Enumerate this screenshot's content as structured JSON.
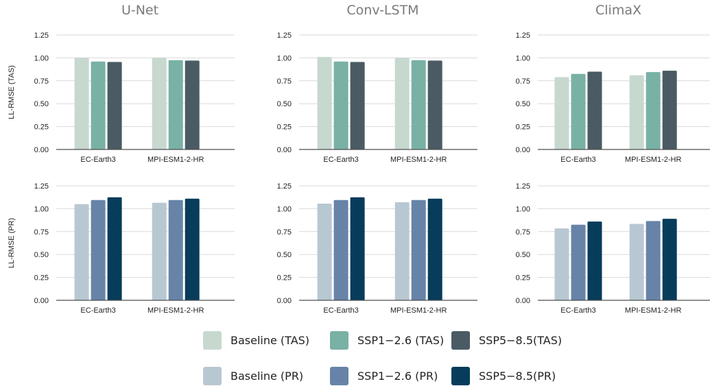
{
  "chart_data": {
    "type": "bar",
    "ylim": [
      0,
      1.25
    ],
    "yticks": [
      "0.00",
      "0.25",
      "0.50",
      "0.75",
      "1.00",
      "1.25"
    ],
    "grid": true,
    "column_titles": [
      "U-Net",
      "Conv-LSTM",
      "ClimaX"
    ],
    "row_labels": [
      "LL-RMSE (TAS)",
      "LL-RMSE (PR)"
    ],
    "categories": [
      "EC-Earth3",
      "MPI-ESM1-2-HR"
    ],
    "legend_position": "bottom",
    "colors": {
      "baseline_tas": "#c7d8cf",
      "ssp126_tas": "#79b1a5",
      "ssp585_tas": "#4a5b63",
      "baseline_pr": "#b8c8d3",
      "ssp126_pr": "#6784a8",
      "ssp585_pr": "#083c5b"
    },
    "panels": [
      {
        "row": 0,
        "col": 0,
        "series": [
          {
            "name": "Baseline (TAS)",
            "color_key": "baseline_tas",
            "values": [
              1.0,
              1.0
            ]
          },
          {
            "name": "SSP1-2.6 (TAS)",
            "color_key": "ssp126_tas",
            "values": [
              0.96,
              0.975
            ]
          },
          {
            "name": "SSP5-8.5 (TAS)",
            "color_key": "ssp585_tas",
            "values": [
              0.955,
              0.97
            ]
          }
        ]
      },
      {
        "row": 0,
        "col": 1,
        "series": [
          {
            "name": "Baseline (TAS)",
            "color_key": "baseline_tas",
            "values": [
              1.01,
              1.0
            ]
          },
          {
            "name": "SSP1-2.6 (TAS)",
            "color_key": "ssp126_tas",
            "values": [
              0.96,
              0.975
            ]
          },
          {
            "name": "SSP5-8.5 (TAS)",
            "color_key": "ssp585_tas",
            "values": [
              0.955,
              0.97
            ]
          }
        ]
      },
      {
        "row": 0,
        "col": 2,
        "series": [
          {
            "name": "Baseline (TAS)",
            "color_key": "baseline_tas",
            "values": [
              0.79,
              0.81
            ]
          },
          {
            "name": "SSP1-2.6 (TAS)",
            "color_key": "ssp126_tas",
            "values": [
              0.825,
              0.845
            ]
          },
          {
            "name": "SSP5-8.5 (TAS)",
            "color_key": "ssp585_tas",
            "values": [
              0.85,
              0.86
            ]
          }
        ]
      },
      {
        "row": 1,
        "col": 0,
        "series": [
          {
            "name": "Baseline (PR)",
            "color_key": "baseline_pr",
            "values": [
              1.05,
              1.065
            ]
          },
          {
            "name": "SSP1-2.6 (PR)",
            "color_key": "ssp126_pr",
            "values": [
              1.095,
              1.095
            ]
          },
          {
            "name": "SSP5-8.5 (PR)",
            "color_key": "ssp585_pr",
            "values": [
              1.125,
              1.11
            ]
          }
        ]
      },
      {
        "row": 1,
        "col": 1,
        "series": [
          {
            "name": "Baseline (PR)",
            "color_key": "baseline_pr",
            "values": [
              1.055,
              1.07
            ]
          },
          {
            "name": "SSP1-2.6 (PR)",
            "color_key": "ssp126_pr",
            "values": [
              1.095,
              1.095
            ]
          },
          {
            "name": "SSP5-8.5 (PR)",
            "color_key": "ssp585_pr",
            "values": [
              1.125,
              1.11
            ]
          }
        ]
      },
      {
        "row": 1,
        "col": 2,
        "series": [
          {
            "name": "Baseline (PR)",
            "color_key": "baseline_pr",
            "values": [
              0.785,
              0.835
            ]
          },
          {
            "name": "SSP1-2.6 (PR)",
            "color_key": "ssp126_pr",
            "values": [
              0.825,
              0.865
            ]
          },
          {
            "name": "SSP5-8.5 (PR)",
            "color_key": "ssp585_pr",
            "values": [
              0.86,
              0.89
            ]
          }
        ]
      }
    ]
  },
  "legend": {
    "items": [
      {
        "label": "Baseline (TAS)",
        "color_key": "baseline_tas"
      },
      {
        "label": "SSP1−2.6 (TAS)",
        "color_key": "ssp126_tas"
      },
      {
        "label": "SSP5−8.5(TAS)",
        "color_key": "ssp585_tas"
      },
      {
        "label": "Baseline (PR)",
        "color_key": "baseline_pr"
      },
      {
        "label": "SSP1−2.6 (PR)",
        "color_key": "ssp126_pr"
      },
      {
        "label": "SSP5−8.5(PR)",
        "color_key": "ssp585_pr"
      }
    ]
  }
}
